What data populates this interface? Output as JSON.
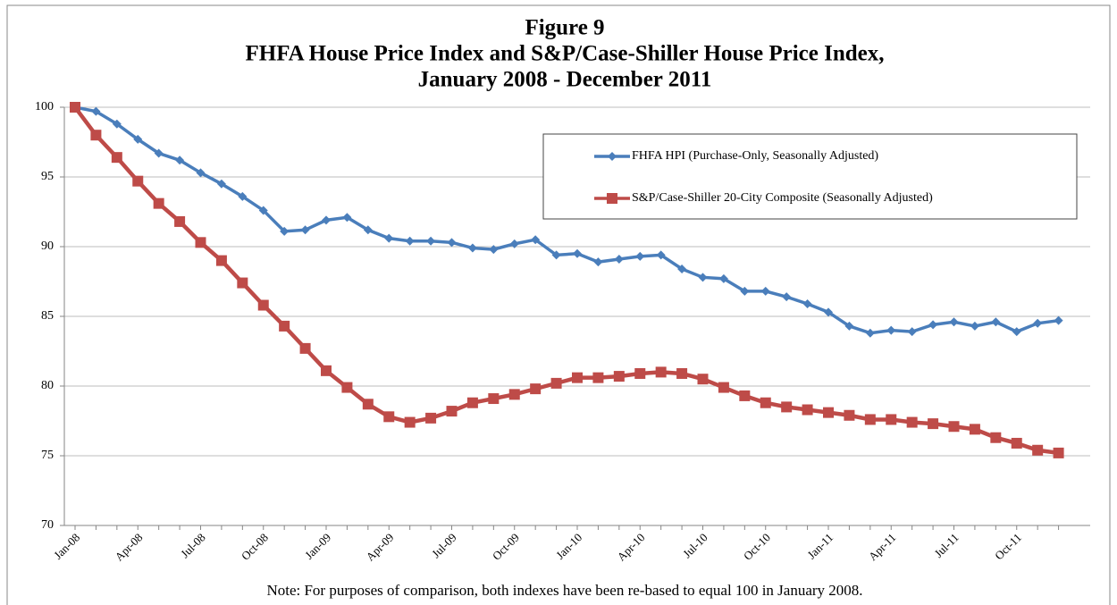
{
  "chart_data": {
    "type": "line",
    "title": "Figure 9",
    "subtitle": [
      "FHFA House Price Index and S&P/Case-Shiller House Price Index,",
      "January 2008 - December 2011"
    ],
    "note": "Note: For purposes of comparison, both indexes have been re-based to equal 100 in January 2008.",
    "categories": [
      "Jan-08",
      null,
      null,
      "Apr-08",
      null,
      null,
      "Jul-08",
      null,
      null,
      "Oct-08",
      null,
      null,
      "Jan-09",
      null,
      null,
      "Apr-09",
      null,
      null,
      "Jul-09",
      null,
      null,
      "Oct-09",
      null,
      null,
      "Jan-10",
      null,
      null,
      "Apr-10",
      null,
      null,
      "Jul-10",
      null,
      null,
      "Oct-10",
      null,
      null,
      "Jan-11",
      null,
      null,
      "Apr-11",
      null,
      null,
      "Jul-11",
      null,
      null,
      "Oct-11",
      null,
      null
    ],
    "series": [
      {
        "name": "FHFA HPI (Purchase-Only, Seasonally Adjusted)",
        "color": "#4a7ebb",
        "marker": "diamond",
        "values": [
          100,
          99.7,
          98.8,
          97.7,
          96.7,
          96.2,
          95.3,
          94.5,
          93.6,
          92.6,
          91.1,
          91.2,
          91.9,
          92.1,
          91.2,
          90.6,
          90.4,
          90.4,
          90.3,
          89.9,
          89.8,
          90.2,
          90.5,
          89.4,
          89.5,
          88.9,
          89.1,
          89.3,
          89.4,
          88.4,
          87.8,
          87.7,
          86.8,
          86.8,
          86.4,
          85.9,
          85.3,
          84.3,
          83.8,
          84.0,
          83.9,
          84.4,
          84.6,
          84.3,
          84.6,
          83.9,
          84.5,
          84.7
        ]
      },
      {
        "name": "S&P/Case-Shiller 20-City Composite (Seasonally Adjusted)",
        "color": "#be4b48",
        "marker": "square",
        "values": [
          100,
          98.0,
          96.4,
          94.7,
          93.1,
          91.8,
          90.3,
          89.0,
          87.4,
          85.8,
          84.3,
          82.7,
          81.1,
          79.9,
          78.7,
          77.8,
          77.4,
          77.7,
          78.2,
          78.8,
          79.1,
          79.4,
          79.8,
          80.2,
          80.6,
          80.6,
          80.7,
          80.9,
          81.0,
          80.9,
          80.5,
          79.9,
          79.3,
          78.8,
          78.5,
          78.3,
          78.1,
          77.9,
          77.6,
          77.6,
          77.4,
          77.3,
          77.1,
          76.9,
          76.3,
          75.9,
          75.4,
          75.2
        ]
      }
    ],
    "ylim": [
      70,
      100
    ],
    "yticks": [
      70,
      75,
      80,
      85,
      90,
      95,
      100
    ],
    "grid": true,
    "legend": "upper right"
  }
}
